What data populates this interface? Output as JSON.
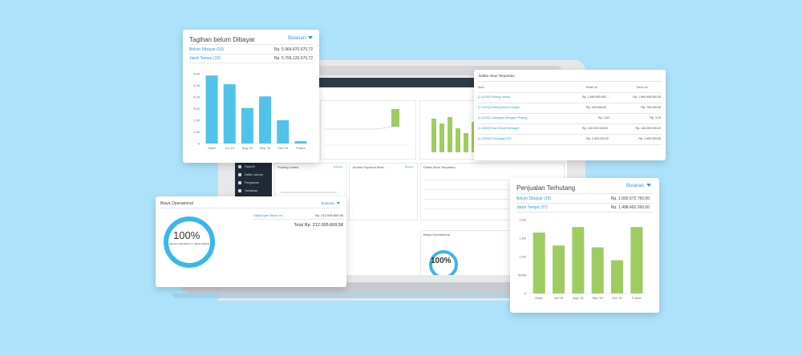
{
  "tagihan": {
    "title": "Tagihan belum Dibayar",
    "period": "Bulanan",
    "rows": [
      {
        "label": "Belum Dibayar (53)",
        "value": "Rp. 5.964.870.670,72"
      },
      {
        "label": "Jatuh Tempo (19)",
        "value": "Rp. 5.706.126.670,72"
      }
    ],
    "chart_data": {
      "type": "bar",
      "categories": [
        "Older",
        "Jul '19",
        "Aug '19",
        "Sep '19",
        "Oct '19",
        "Future"
      ],
      "yticks": [
        "0",
        "1.00",
        "2.00",
        "3.00",
        "4.00",
        "5.00",
        "6.00"
      ],
      "values": [
        5.85,
        5.1,
        3.05,
        4.05,
        2.0,
        0.2
      ],
      "ylim": [
        0,
        6
      ],
      "color": "#4fc3ea"
    }
  },
  "daftar_akun": {
    "title": "Daftar Akun Terpantau",
    "headers": [
      "Akun",
      "Bulan ini",
      "Tahun ini"
    ],
    "rows": [
      {
        "akun": "[1-10100] Piutang Usaha",
        "bulan": "Rp. 1.690.905.500,...",
        "tahun": "Rp. 1.690.905.500,00"
      },
      {
        "akun": "[1-10101] Piutang Belum Ditagih",
        "bulan": "Rp. 100.000,00",
        "tahun": "Rp. 700.000,00"
      },
      {
        "akun": "[1-10102] Cadangan Kerugian Piutang",
        "bulan": "Rp. 3,20",
        "tahun": "Rp. 3,20"
      },
      {
        "akun": "[1-10200] Kas di Bank Berdaget",
        "bulan": "Rp. 140.200.000,00",
        "tahun": "Rp. 140.200.000,00"
      },
      {
        "akun": "[1-10300] Persediaan ATK",
        "bulan": "Rp. 1.900.000,00",
        "tahun": "Rp. 1.900.000,00"
      }
    ]
  },
  "biaya": {
    "title": "Biaya Operasional",
    "period": "Bulanan",
    "percent": "100%",
    "donut_label": "Gaji dan Upah Bulan Ini - Belum Dibayar",
    "item_label": "Gaji&Upah Bulan Ini ...",
    "item_value": "Rp. 212.005.609,58",
    "total": "Total Rp. 212.005.609,58",
    "color": "#3ab7ea"
  },
  "penjualan": {
    "title": "Penjualan Terhutang",
    "period": "Bulanan",
    "rows": [
      {
        "label": "Belum Dibayar (29)",
        "value": "Rp. 1.692.672.760,00"
      },
      {
        "label": "Jatuh Tempo (27)",
        "value": "Rp. 1.498.492.260,00"
      }
    ],
    "chart_data": {
      "type": "bar",
      "categories": [
        "Older",
        "Jul '19",
        "Aug '19",
        "Sep '19",
        "Oct '19",
        "Future"
      ],
      "yticks": [
        "0",
        "500M",
        "1.0G",
        "1.5G",
        "2.0G"
      ],
      "values": [
        1.65,
        1.3,
        1.8,
        1.25,
        0.9,
        1.8
      ],
      "ylim": [
        0,
        2
      ],
      "color": "#9fcc61"
    }
  },
  "screen": {
    "sidebar": [
      "Pajak/Di",
      "Daftar Lainnya",
      "Pengaturan",
      "Tambahan",
      "Pos"
    ],
    "panels": [
      {
        "title": "Piutang Usaha",
        "link": "Bulanan"
      },
      {
        "title": "Jumlah Payment Berd...",
        "link": "Bulanan"
      },
      {
        "title": "Daftar Akun Terpantau"
      },
      {
        "title": "Biaya Operasional"
      }
    ],
    "mini_percent": "100%"
  }
}
